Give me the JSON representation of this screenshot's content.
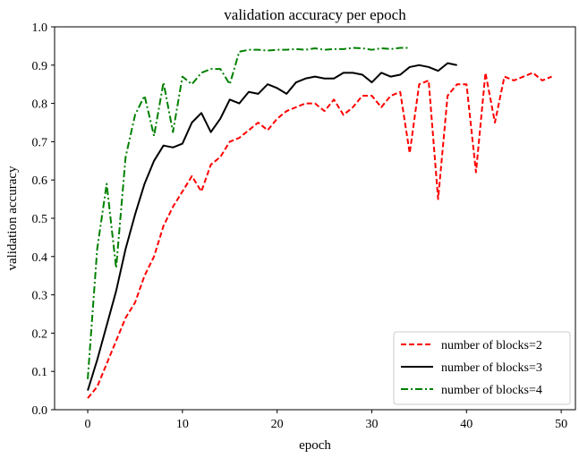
{
  "chart_data": {
    "type": "line",
    "title": "validation accuracy per epoch",
    "xlabel": "epoch",
    "ylabel": "validation accuracy",
    "xlim": [
      -3.5,
      51.5
    ],
    "ylim": [
      0.0,
      1.0
    ],
    "xticks": [
      0,
      10,
      20,
      30,
      40,
      50
    ],
    "yticks": [
      0.0,
      0.1,
      0.2,
      0.3,
      0.4,
      0.5,
      0.6,
      0.7,
      0.8,
      0.9,
      1.0
    ],
    "grid": false,
    "legend_position": "bottom-right",
    "series": [
      {
        "name": "number of blocks=2",
        "color": "#ff0000",
        "dash": "dashed",
        "values": [
          0.03,
          0.06,
          0.12,
          0.18,
          0.24,
          0.28,
          0.35,
          0.4,
          0.48,
          0.53,
          0.57,
          0.61,
          0.57,
          0.64,
          0.66,
          0.7,
          0.71,
          0.73,
          0.75,
          0.73,
          0.76,
          0.78,
          0.79,
          0.8,
          0.8,
          0.78,
          0.81,
          0.77,
          0.79,
          0.82,
          0.82,
          0.79,
          0.82,
          0.83,
          0.67,
          0.85,
          0.86,
          0.55,
          0.82,
          0.85,
          0.85,
          0.62,
          0.88,
          0.75,
          0.87,
          0.86,
          0.87,
          0.88,
          0.86,
          0.87
        ]
      },
      {
        "name": "number of blocks=3",
        "color": "#000000",
        "dash": "solid",
        "values": [
          0.05,
          0.13,
          0.22,
          0.31,
          0.42,
          0.51,
          0.59,
          0.65,
          0.69,
          0.685,
          0.695,
          0.75,
          0.775,
          0.725,
          0.76,
          0.81,
          0.8,
          0.83,
          0.825,
          0.85,
          0.84,
          0.825,
          0.855,
          0.865,
          0.87,
          0.865,
          0.865,
          0.88,
          0.88,
          0.875,
          0.855,
          0.88,
          0.87,
          0.875,
          0.895,
          0.9,
          0.895,
          0.885,
          0.905,
          0.9
        ]
      },
      {
        "name": "number of blocks=4",
        "color": "#008000",
        "dash": "dashdot",
        "values": [
          0.08,
          0.42,
          0.59,
          0.37,
          0.66,
          0.77,
          0.82,
          0.715,
          0.855,
          0.725,
          0.87,
          0.85,
          0.88,
          0.89,
          0.89,
          0.85,
          0.935,
          0.94,
          0.94,
          0.938,
          0.94,
          0.94,
          0.942,
          0.94,
          0.944,
          0.94,
          0.942,
          0.942,
          0.945,
          0.944,
          0.94,
          0.944,
          0.942,
          0.945,
          0.945
        ]
      }
    ]
  }
}
